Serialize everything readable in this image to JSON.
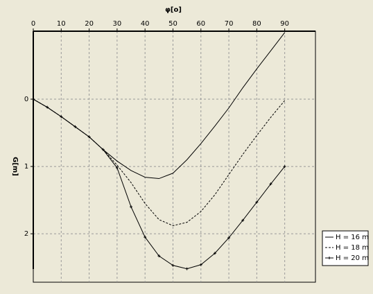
{
  "chart_data": {
    "type": "line",
    "x_label": "φ[o]",
    "y_label": "G[m]",
    "x": [
      0,
      5,
      10,
      15,
      20,
      25,
      30,
      35,
      40,
      45,
      50,
      55,
      60,
      65,
      70,
      75,
      80,
      85,
      90
    ],
    "series": [
      {
        "name": "H = 16 m",
        "color": "#000000",
        "style": "solid",
        "values": [
          0,
          0.12,
          0.26,
          0.41,
          0.56,
          0.75,
          0.92,
          1.06,
          1.16,
          1.18,
          1.1,
          0.9,
          0.66,
          0.4,
          0.13,
          -0.17,
          -0.45,
          -0.72,
          -0.99
        ]
      },
      {
        "name": "H = 18 m",
        "color": "#000000",
        "style": "dashed",
        "values": [
          0,
          0.12,
          0.26,
          0.41,
          0.56,
          0.75,
          0.98,
          1.24,
          1.55,
          1.79,
          1.88,
          1.83,
          1.67,
          1.42,
          1.12,
          0.82,
          0.54,
          0.27,
          0.02
        ]
      },
      {
        "name": "H = 20 m",
        "color": "#000000",
        "style": "marked",
        "values": [
          0,
          0.12,
          0.26,
          0.41,
          0.56,
          0.75,
          1.02,
          1.6,
          2.05,
          2.33,
          2.47,
          2.52,
          2.46,
          2.29,
          2.06,
          1.8,
          1.53,
          1.26,
          1.0
        ]
      }
    ],
    "xlim": [
      0,
      101
    ],
    "ylim": [
      -1.01,
      2.72
    ],
    "xticks": [
      0,
      10,
      20,
      30,
      40,
      50,
      60,
      70,
      80,
      90
    ],
    "yticks": [
      0,
      1,
      2
    ],
    "grid": true,
    "y_inverted": true,
    "legend": "lower right"
  }
}
